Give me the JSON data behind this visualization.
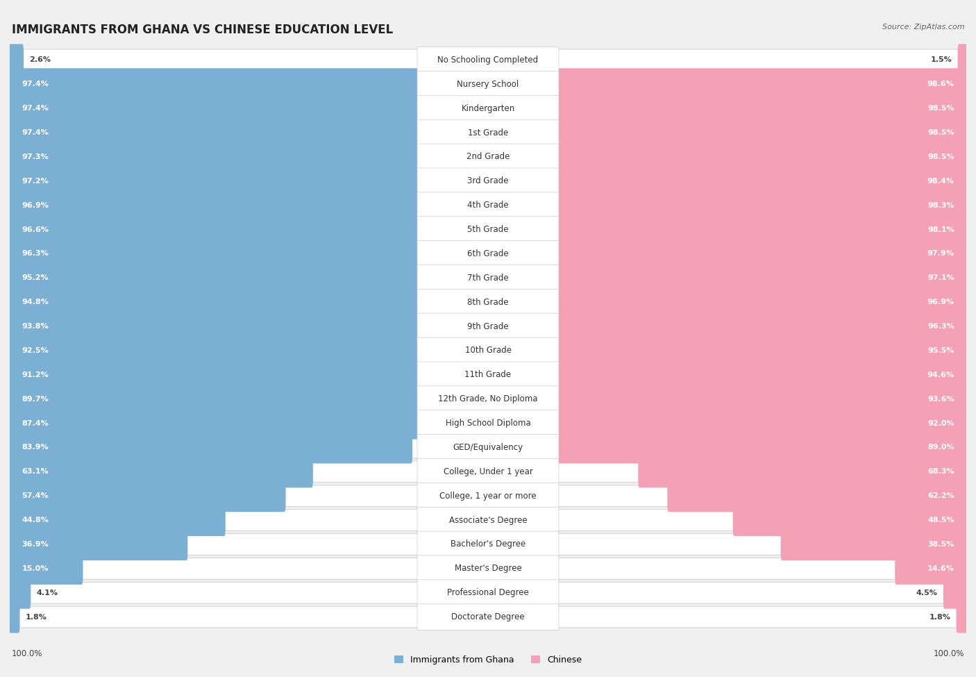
{
  "title": "IMMIGRANTS FROM GHANA VS CHINESE EDUCATION LEVEL",
  "source": "Source: ZipAtlas.com",
  "categories": [
    "No Schooling Completed",
    "Nursery School",
    "Kindergarten",
    "1st Grade",
    "2nd Grade",
    "3rd Grade",
    "4th Grade",
    "5th Grade",
    "6th Grade",
    "7th Grade",
    "8th Grade",
    "9th Grade",
    "10th Grade",
    "11th Grade",
    "12th Grade, No Diploma",
    "High School Diploma",
    "GED/Equivalency",
    "College, Under 1 year",
    "College, 1 year or more",
    "Associate's Degree",
    "Bachelor's Degree",
    "Master's Degree",
    "Professional Degree",
    "Doctorate Degree"
  ],
  "ghana_values": [
    2.6,
    97.4,
    97.4,
    97.4,
    97.3,
    97.2,
    96.9,
    96.6,
    96.3,
    95.2,
    94.8,
    93.8,
    92.5,
    91.2,
    89.7,
    87.4,
    83.9,
    63.1,
    57.4,
    44.8,
    36.9,
    15.0,
    4.1,
    1.8
  ],
  "chinese_values": [
    1.5,
    98.6,
    98.5,
    98.5,
    98.5,
    98.4,
    98.3,
    98.1,
    97.9,
    97.1,
    96.9,
    96.3,
    95.5,
    94.6,
    93.6,
    92.0,
    89.0,
    68.3,
    62.2,
    48.5,
    38.5,
    14.6,
    4.5,
    1.8
  ],
  "ghana_color": "#7BAFD4",
  "chinese_color": "#F4A0B5",
  "background_color": "#f0f0f0",
  "row_bg_color": "#ffffff",
  "title_fontsize": 12,
  "label_fontsize": 8.5,
  "value_fontsize": 8,
  "source_text": "Source: ZipAtlas.com"
}
